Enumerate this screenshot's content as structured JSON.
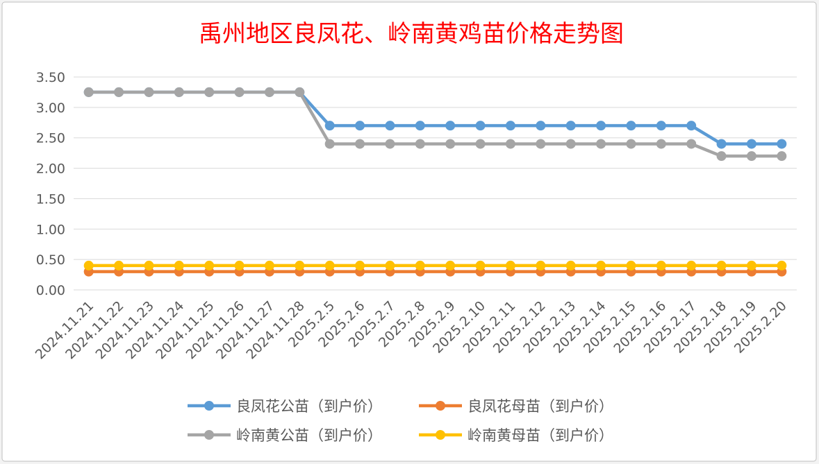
{
  "chart_data": {
    "type": "line",
    "title": "禹州地区良凤花、岭南黄鸡苗价格走势图",
    "xlabel": "",
    "ylabel": "",
    "ylim": [
      0,
      3.5
    ],
    "y_ticks": [
      "0.00",
      "0.50",
      "1.00",
      "1.50",
      "2.00",
      "2.50",
      "3.00",
      "3.50"
    ],
    "grid": true,
    "legend_position": "bottom",
    "categories": [
      "2024.11.21",
      "2024.11.22",
      "2024.11.23",
      "2024.11.24",
      "2024.11.25",
      "2024.11.26",
      "2024.11.27",
      "2024.11.28",
      "2025.2.5",
      "2025.2.6",
      "2025.2.7",
      "2025.2.8",
      "2025.2.9",
      "2025.2.10",
      "2025.2.11",
      "2025.2.12",
      "2025.2.13",
      "2025.2.14",
      "2025.2.15",
      "2025.2.16",
      "2025.2.17",
      "2025.2.18",
      "2025.2.19",
      "2025.2.20"
    ],
    "series": [
      {
        "name": "良凤花公苗（到户价）",
        "color": "#5b9bd5",
        "values": [
          3.25,
          3.25,
          3.25,
          3.25,
          3.25,
          3.25,
          3.25,
          3.25,
          2.7,
          2.7,
          2.7,
          2.7,
          2.7,
          2.7,
          2.7,
          2.7,
          2.7,
          2.7,
          2.7,
          2.7,
          2.7,
          2.4,
          2.4,
          2.4
        ]
      },
      {
        "name": "良凤花母苗（到户价）",
        "color": "#ed7d31",
        "values": [
          0.3,
          0.3,
          0.3,
          0.3,
          0.3,
          0.3,
          0.3,
          0.3,
          0.3,
          0.3,
          0.3,
          0.3,
          0.3,
          0.3,
          0.3,
          0.3,
          0.3,
          0.3,
          0.3,
          0.3,
          0.3,
          0.3,
          0.3,
          0.3
        ]
      },
      {
        "name": "岭南黄公苗（到户价）",
        "color": "#a5a5a5",
        "values": [
          3.25,
          3.25,
          3.25,
          3.25,
          3.25,
          3.25,
          3.25,
          3.25,
          2.4,
          2.4,
          2.4,
          2.4,
          2.4,
          2.4,
          2.4,
          2.4,
          2.4,
          2.4,
          2.4,
          2.4,
          2.4,
          2.2,
          2.2,
          2.2
        ]
      },
      {
        "name": "岭南黄母苗（到户价）",
        "color": "#ffc000",
        "values": [
          0.4,
          0.4,
          0.4,
          0.4,
          0.4,
          0.4,
          0.4,
          0.4,
          0.4,
          0.4,
          0.4,
          0.4,
          0.4,
          0.4,
          0.4,
          0.4,
          0.4,
          0.4,
          0.4,
          0.4,
          0.4,
          0.4,
          0.4,
          0.4
        ]
      }
    ],
    "colors": {
      "title": "#ff0000",
      "axis_text": "#595959",
      "grid": "#d9d9d9",
      "background": "#ffffff",
      "border": "#bfbfbf"
    }
  }
}
